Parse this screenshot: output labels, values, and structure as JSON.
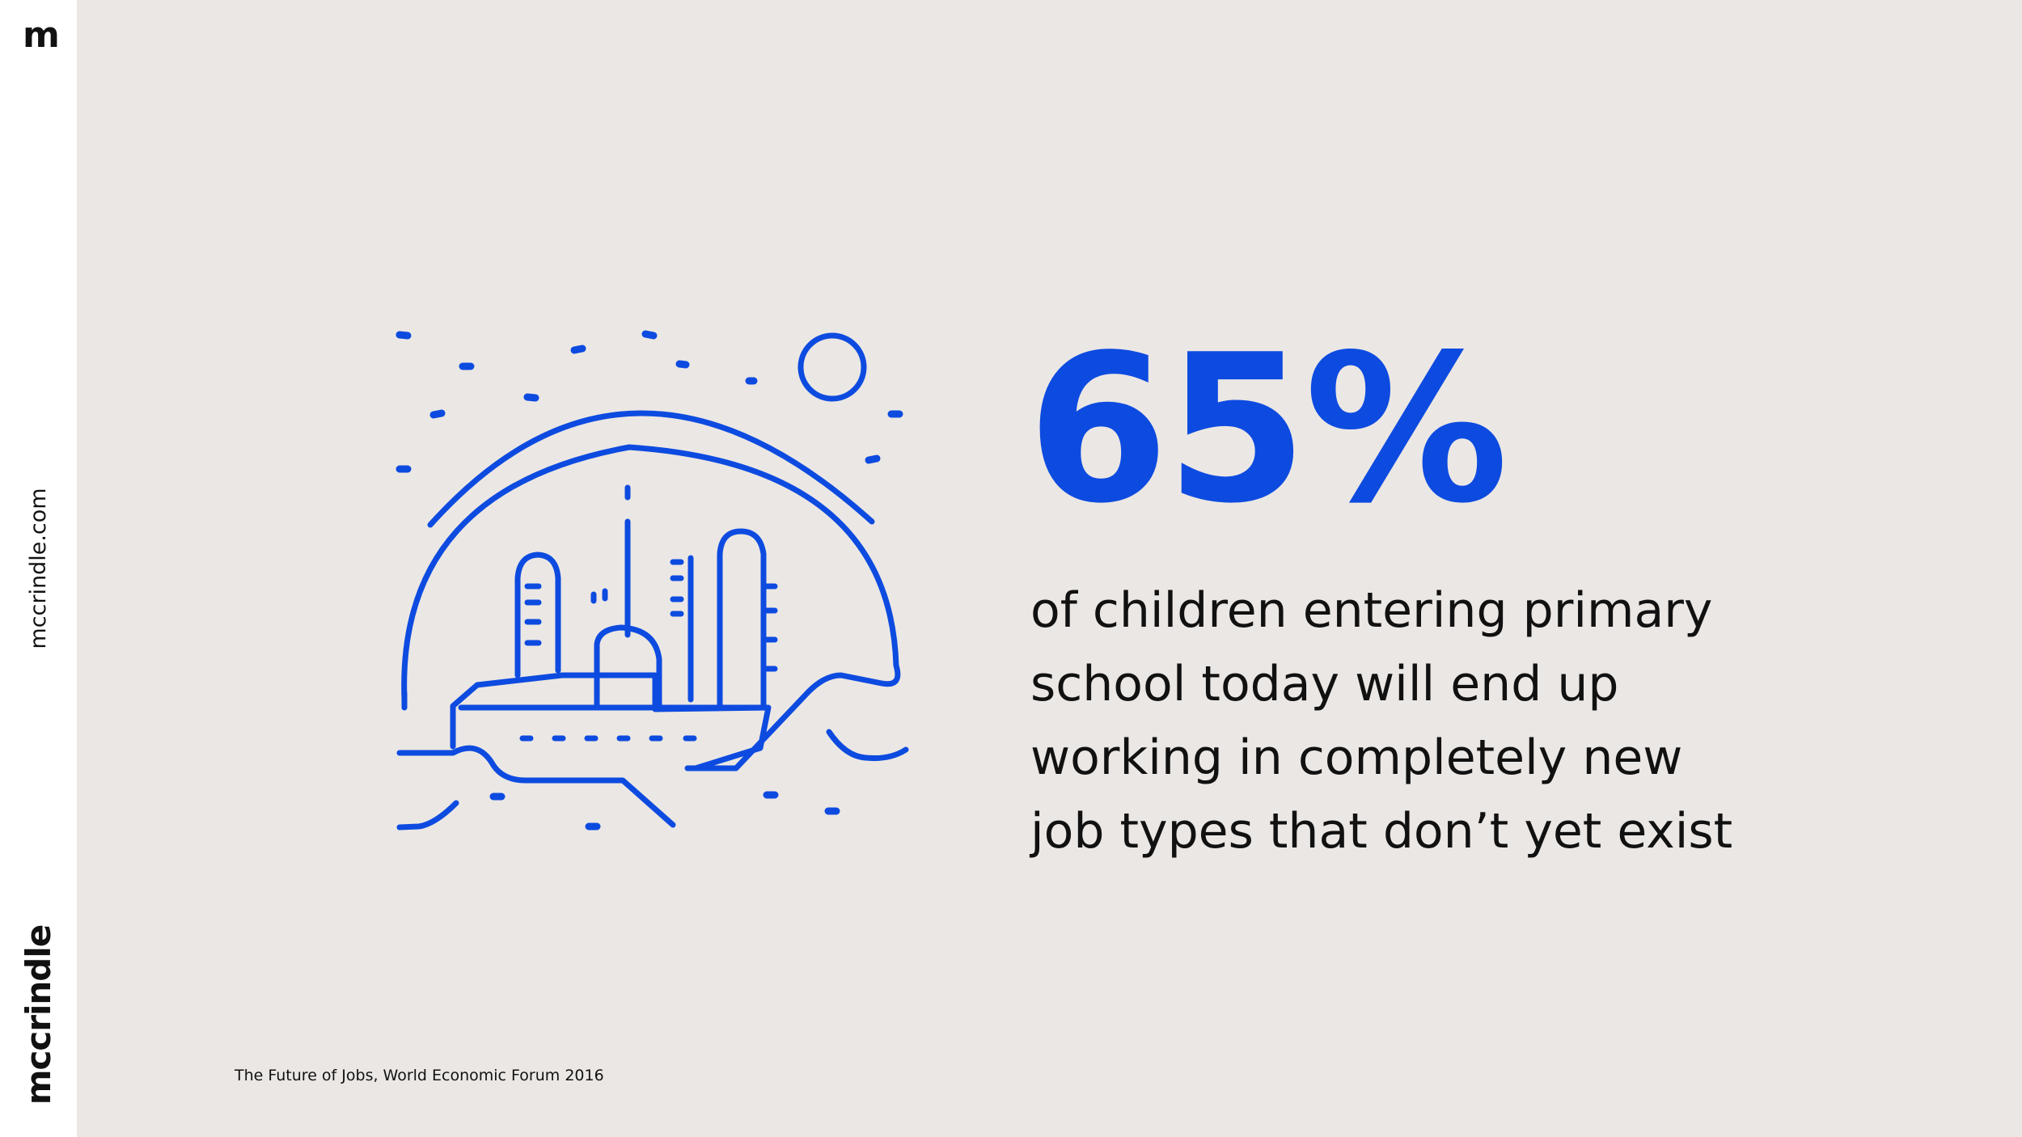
{
  "brand": {
    "monogram": "m",
    "website": "mccrindle.com",
    "wordmark": "mccrindle"
  },
  "illustration": {
    "icon": "city-dome-icon",
    "color": "#0d4be0"
  },
  "stat": {
    "value": "65%",
    "description_lines": [
      "of children entering primary",
      "school today will end up",
      "working in completely new",
      "job types that don’t yet exist"
    ]
  },
  "source": "The Future of Jobs, World Economic Forum 2016",
  "colors": {
    "background": "#ebe7e4",
    "sidebar": "#ffffff",
    "accent": "#0d4be0",
    "text": "#111111"
  }
}
